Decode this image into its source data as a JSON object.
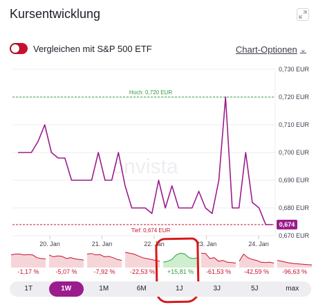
{
  "header": {
    "title": "Kursentwicklung",
    "expand_icon": "expand-icon"
  },
  "compare": {
    "label": "Vergleichen mit S&P 500 ETF",
    "toggle_on": true
  },
  "chart_options": {
    "label": "Chart-Optionen"
  },
  "colors": {
    "line": "#9b1c8c",
    "high": "#2e9b3a",
    "low": "#c8102e",
    "active_period": "#9b1c8c",
    "negative": "#c8102e",
    "positive": "#2e9b3a"
  },
  "chart_data": {
    "type": "line",
    "series": [
      {
        "values": [
          0.7,
          0.7,
          0.7,
          0.704,
          0.71,
          0.7,
          0.698,
          0.698,
          0.69,
          0.69,
          0.69,
          0.69,
          0.7,
          0.69,
          0.69,
          0.7,
          0.688,
          0.68,
          0.68,
          0.68,
          0.678,
          0.69,
          0.68,
          0.688,
          0.68,
          0.68,
          0.68,
          0.686,
          0.68,
          0.678,
          0.69,
          0.72,
          0.68,
          0.68,
          0.7,
          0.682,
          0.68,
          0.674,
          0.674
        ]
      }
    ],
    "x_tick_labels": [
      "20. Jan",
      "21. Jan",
      "22. Jan",
      "23. Jan",
      "24. Jan"
    ],
    "y_tick_labels": [
      "0,730 EUR",
      "0,720 EUR",
      "0,710 EUR",
      "0,700 EUR",
      "0,690 EUR",
      "0,680 EUR",
      "0,670 EUR"
    ],
    "ylim": [
      0.67,
      0.73
    ],
    "high": {
      "value": 0.72,
      "label": "Hoch: 0,720 EUR"
    },
    "low": {
      "value": 0.674,
      "label": "Tief: 0,674 EUR"
    },
    "last_value_label": "0,674",
    "watermark": "onvista",
    "grid": true
  },
  "mini_charts": [
    {
      "label": "-1,17 %",
      "positive": false,
      "values": [
        0.7,
        0.75,
        0.75,
        0.7,
        0.72,
        0.7,
        0.55,
        0.5,
        0.48
      ]
    },
    {
      "label": "-5,07 %",
      "positive": false,
      "values": [
        0.7,
        0.6,
        0.65,
        0.62,
        0.5,
        0.55,
        0.48,
        0.45,
        0.42
      ]
    },
    {
      "label": "-7,92 %",
      "positive": false,
      "values": [
        0.75,
        0.78,
        0.7,
        0.72,
        0.6,
        0.62,
        0.55,
        0.45,
        0.4
      ]
    },
    {
      "label": "-22,53 %",
      "positive": false,
      "values": [
        0.85,
        0.8,
        0.75,
        0.65,
        0.55,
        0.5,
        0.45,
        0.4,
        0.35
      ]
    },
    {
      "label": "+15,81 %",
      "positive": true,
      "values": [
        0.3,
        0.35,
        0.45,
        0.7,
        0.8,
        0.75,
        0.55,
        0.5,
        0.55
      ]
    },
    {
      "label": "-61,53 %",
      "positive": false,
      "values": [
        0.8,
        0.78,
        0.5,
        0.55,
        0.35,
        0.4,
        0.3,
        0.28,
        0.25
      ]
    },
    {
      "label": "-42,59 %",
      "positive": false,
      "values": [
        0.35,
        0.75,
        0.55,
        0.45,
        0.4,
        0.3,
        0.28,
        0.3,
        0.25
      ]
    },
    {
      "label": "-96,63 %",
      "positive": false,
      "values": [
        0.4,
        0.35,
        0.3,
        0.25,
        0.22,
        0.2,
        0.18,
        0.16,
        0.15
      ]
    }
  ],
  "periods": [
    {
      "label": "1T",
      "active": false
    },
    {
      "label": "1W",
      "active": true
    },
    {
      "label": "1M",
      "active": false
    },
    {
      "label": "6M",
      "active": false
    },
    {
      "label": "1J",
      "active": false
    },
    {
      "label": "3J",
      "active": false
    },
    {
      "label": "5J",
      "active": false
    },
    {
      "label": "max",
      "active": false
    }
  ]
}
